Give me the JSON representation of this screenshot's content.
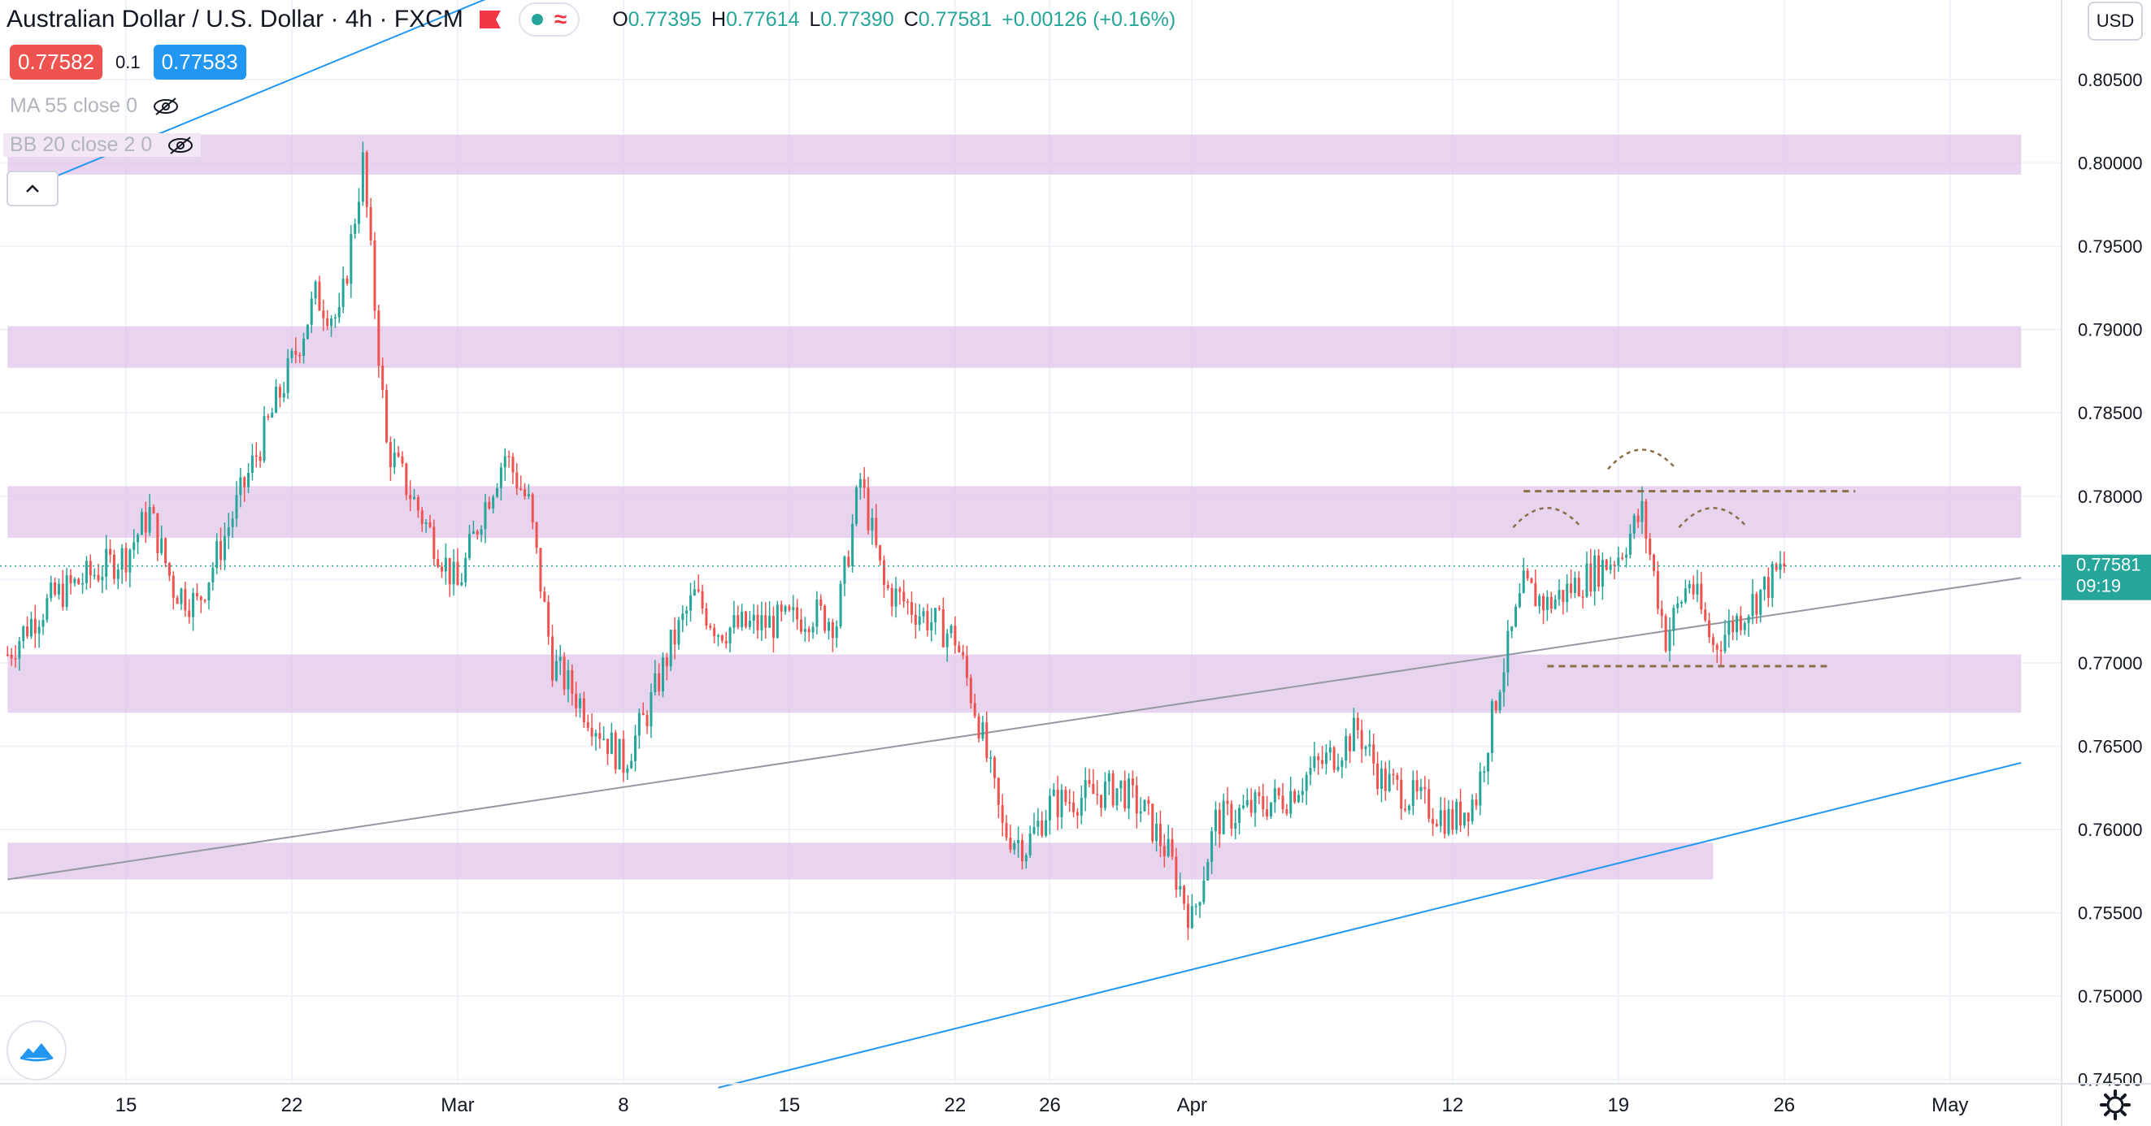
{
  "header": {
    "symbol_title": "Australian Dollar / U.S. Dollar · 4h · FXCM",
    "ohlc": [
      {
        "key": "O",
        "value": "0.77395"
      },
      {
        "key": "H",
        "value": "0.77614"
      },
      {
        "key": "L",
        "value": "0.77390"
      },
      {
        "key": "C",
        "value": "0.77581"
      }
    ],
    "change": "+0.00126 (+0.16%)",
    "sell_price": "0.77582",
    "spread": "0.1",
    "buy_price": "0.77583"
  },
  "indicators": [
    {
      "label": "MA 55 close 0",
      "icon": "eye-off-icon"
    },
    {
      "label": "BB 20 close 2 0",
      "icon": "eye-off-icon"
    }
  ],
  "axis": {
    "currency": "USD",
    "last_price": "0.77581",
    "countdown": "09:19"
  },
  "colors": {
    "up": "#26a69a",
    "down": "#ef5350",
    "zone": "#e1c6ea",
    "trendline_blue": "#2196f3",
    "trendline_gray": "#9598a1",
    "pattern": "#8b6f47"
  },
  "chart_data": {
    "type": "candlestick",
    "symbol": "AUDUSD",
    "timeframe": "4h",
    "ylim": [
      0.745,
      0.8065
    ],
    "y_ticks": [
      "0.80500",
      "0.80000",
      "0.79500",
      "0.79000",
      "0.78500",
      "0.78000",
      "0.77500",
      "0.77000",
      "0.76500",
      "0.76000",
      "0.75500",
      "0.75000",
      "0.74500"
    ],
    "x_ticks": [
      {
        "label": "15",
        "date": "2021-02-15"
      },
      {
        "label": "22",
        "date": "2021-02-22"
      },
      {
        "label": "Mar",
        "date": "2021-03-01"
      },
      {
        "label": "8",
        "date": "2021-03-08"
      },
      {
        "label": "15",
        "date": "2021-03-15"
      },
      {
        "label": "22",
        "date": "2021-03-22"
      },
      {
        "label": "26",
        "date": "2021-03-26"
      },
      {
        "label": "Apr",
        "date": "2021-04-01"
      },
      {
        "label": "12",
        "date": "2021-04-12"
      },
      {
        "label": "19",
        "date": "2021-04-19"
      },
      {
        "label": "26",
        "date": "2021-04-26"
      },
      {
        "label": "May",
        "date": "2021-05-03"
      }
    ],
    "last_price": 0.77581,
    "price_path": [
      {
        "date": "2021-02-10",
        "price": 0.7705
      },
      {
        "date": "2021-02-11",
        "price": 0.7725
      },
      {
        "date": "2021-02-12",
        "price": 0.774
      },
      {
        "date": "2021-02-15",
        "price": 0.7765
      },
      {
        "date": "2021-02-16",
        "price": 0.779
      },
      {
        "date": "2021-02-17",
        "price": 0.7745
      },
      {
        "date": "2021-02-18",
        "price": 0.7735
      },
      {
        "date": "2021-02-19",
        "price": 0.777
      },
      {
        "date": "2021-02-22",
        "price": 0.788
      },
      {
        "date": "2021-02-23",
        "price": 0.792
      },
      {
        "date": "2021-02-24",
        "price": 0.7905
      },
      {
        "date": "2021-02-25",
        "price": 0.8
      },
      {
        "date": "2021-02-26",
        "price": 0.783
      },
      {
        "date": "2021-03-01",
        "price": 0.7745
      },
      {
        "date": "2021-03-02",
        "price": 0.779
      },
      {
        "date": "2021-03-03",
        "price": 0.7825
      },
      {
        "date": "2021-03-04",
        "price": 0.7795
      },
      {
        "date": "2021-03-05",
        "price": 0.77
      },
      {
        "date": "2021-03-08",
        "price": 0.764
      },
      {
        "date": "2021-03-09",
        "price": 0.767
      },
      {
        "date": "2021-03-10",
        "price": 0.771
      },
      {
        "date": "2021-03-11",
        "price": 0.774
      },
      {
        "date": "2021-03-12",
        "price": 0.772
      },
      {
        "date": "2021-03-15",
        "price": 0.7725
      },
      {
        "date": "2021-03-16",
        "price": 0.773
      },
      {
        "date": "2021-03-17",
        "price": 0.7725
      },
      {
        "date": "2021-03-18",
        "price": 0.781
      },
      {
        "date": "2021-03-19",
        "price": 0.7745
      },
      {
        "date": "2021-03-22",
        "price": 0.7715
      },
      {
        "date": "2021-03-23",
        "price": 0.7665
      },
      {
        "date": "2021-03-24",
        "price": 0.76
      },
      {
        "date": "2021-03-25",
        "price": 0.759
      },
      {
        "date": "2021-03-26",
        "price": 0.7615
      },
      {
        "date": "2021-03-29",
        "price": 0.7625
      },
      {
        "date": "2021-03-30",
        "price": 0.761
      },
      {
        "date": "2021-03-31",
        "price": 0.7585
      },
      {
        "date": "2021-04-01",
        "price": 0.7545
      },
      {
        "date": "2021-04-02",
        "price": 0.7605
      },
      {
        "date": "2021-04-05",
        "price": 0.762
      },
      {
        "date": "2021-04-06",
        "price": 0.7635
      },
      {
        "date": "2021-04-07",
        "price": 0.7645
      },
      {
        "date": "2021-04-08",
        "price": 0.766
      },
      {
        "date": "2021-04-09",
        "price": 0.763
      },
      {
        "date": "2021-04-12",
        "price": 0.7605
      },
      {
        "date": "2021-04-13",
        "price": 0.762
      },
      {
        "date": "2021-04-14",
        "price": 0.769
      },
      {
        "date": "2021-04-15",
        "price": 0.7745
      },
      {
        "date": "2021-04-16",
        "price": 0.7735
      },
      {
        "date": "2021-04-19",
        "price": 0.7765
      },
      {
        "date": "2021-04-20",
        "price": 0.779
      },
      {
        "date": "2021-04-21",
        "price": 0.7715
      },
      {
        "date": "2021-04-22",
        "price": 0.775
      },
      {
        "date": "2021-04-23",
        "price": 0.771
      },
      {
        "date": "2021-04-26",
        "price": 0.7758
      }
    ],
    "zones": [
      {
        "from": 0.7993,
        "to": 0.8017,
        "start": "2021-02-10",
        "end": "2021-05-06"
      },
      {
        "from": 0.7877,
        "to": 0.7902,
        "start": "2021-02-10",
        "end": "2021-05-06"
      },
      {
        "from": 0.7775,
        "to": 0.7806,
        "start": "2021-02-10",
        "end": "2021-05-06"
      },
      {
        "from": 0.767,
        "to": 0.7705,
        "start": "2021-02-10",
        "end": "2021-05-06"
      },
      {
        "from": 0.757,
        "to": 0.7592,
        "start": "2021-02-10",
        "end": "2021-04-23"
      }
    ],
    "trendlines": [
      {
        "color": "blue",
        "from": {
          "date": "2021-02-10",
          "price": 0.798
        },
        "to": {
          "date": "2021-03-11",
          "price": 0.815
        }
      },
      {
        "color": "blue",
        "from": {
          "date": "2021-03-12",
          "price": 0.7445
        },
        "to": {
          "date": "2021-05-06",
          "price": 0.764
        }
      },
      {
        "color": "gray",
        "from": {
          "date": "2021-02-10",
          "price": 0.757
        },
        "to": {
          "date": "2021-05-06",
          "price": 0.7751
        }
      }
    ],
    "pattern": {
      "name": "head and shoulders",
      "neckline_high": {
        "price": 0.7803,
        "start": "2021-04-15",
        "end": "2021-04-29"
      },
      "neckline_low": {
        "price": 0.7698,
        "start": "2021-04-16",
        "end": "2021-04-28"
      },
      "arcs": [
        {
          "date": "2021-04-16",
          "price": 0.779
        },
        {
          "date": "2021-04-20",
          "price": 0.7825
        },
        {
          "date": "2021-04-23",
          "price": 0.779
        }
      ]
    }
  }
}
